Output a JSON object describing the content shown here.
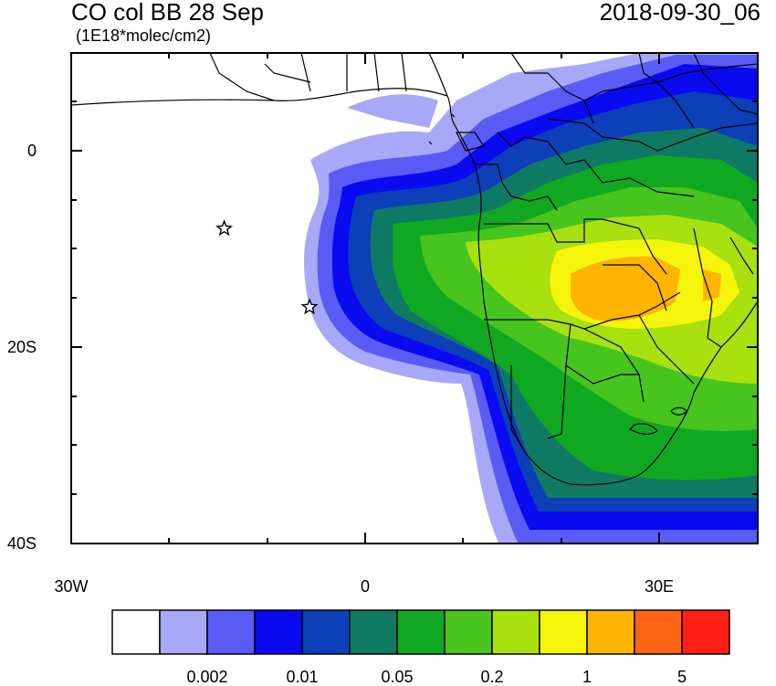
{
  "title": "CO col BB 28 Sep",
  "subtitle": "(1E18*molec/cm2)",
  "datetime": "2018-09-30_06",
  "axes": {
    "y_ticks": [
      "0",
      "20S",
      "40S"
    ],
    "x_ticks": [
      "30W",
      "0",
      "30E"
    ]
  },
  "map": {
    "region": "Southern Africa and South Atlantic",
    "lon_range": [
      -30,
      40
    ],
    "lat_range": [
      -40,
      10
    ],
    "markers": [
      {
        "type": "star",
        "lon": -14.4,
        "lat": -7.9
      },
      {
        "type": "star",
        "lon": -5.7,
        "lat": -15.9
      }
    ]
  },
  "colorbar": {
    "colors": [
      "#ffffff",
      "#a8a8f8",
      "#5a5af5",
      "#0a0af0",
      "#0c3fb8",
      "#0f7a64",
      "#10a820",
      "#48c41e",
      "#a8e010",
      "#f5f50c",
      "#ffb400",
      "#ff6414",
      "#ff1e14"
    ],
    "labels": [
      "0.002",
      "0.01",
      "0.05",
      "0.2",
      "1",
      "5"
    ]
  }
}
